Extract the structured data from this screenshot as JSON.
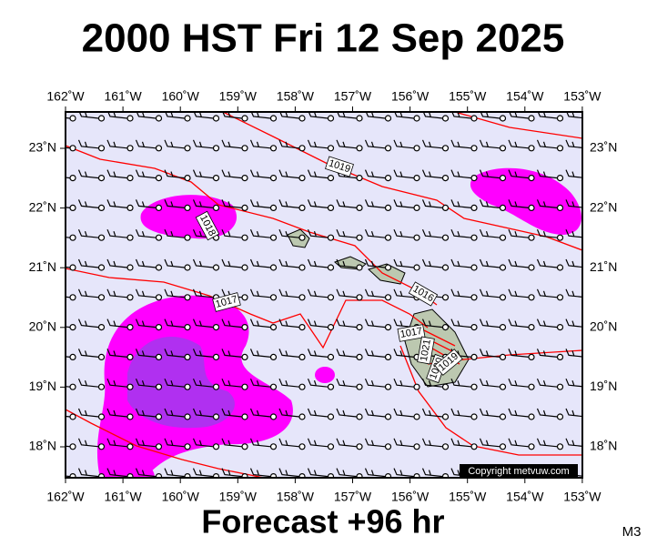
{
  "header": {
    "title": "2000 HST Fri 12 Sep 2025"
  },
  "footer": {
    "forecast": "Forecast +96 hr",
    "model": "M3"
  },
  "map": {
    "top_labels": [
      "162˚W",
      "161˚W",
      "160˚W",
      "159˚W",
      "158˚W",
      "157˚W",
      "156˚W",
      "155˚W",
      "154˚W",
      "153˚W"
    ],
    "bottom_labels": [
      "162˚W",
      "161˚W",
      "160˚W",
      "159˚W",
      "158˚W",
      "157˚W",
      "156˚W",
      "155˚W",
      "154˚W",
      "153˚W"
    ],
    "left_labels": [
      "23˚N",
      "22˚N",
      "21˚N",
      "20˚N",
      "19˚N",
      "18˚N"
    ],
    "right_labels": [
      "23˚N",
      "22˚N",
      "21˚N",
      "20˚N",
      "19˚N",
      "18˚N"
    ],
    "isobar_labels": [
      "1019",
      "1018",
      "1017",
      "1016",
      "1017",
      "1021",
      "1020",
      "1019"
    ],
    "copyright": "Copyright metvuw.com"
  }
}
